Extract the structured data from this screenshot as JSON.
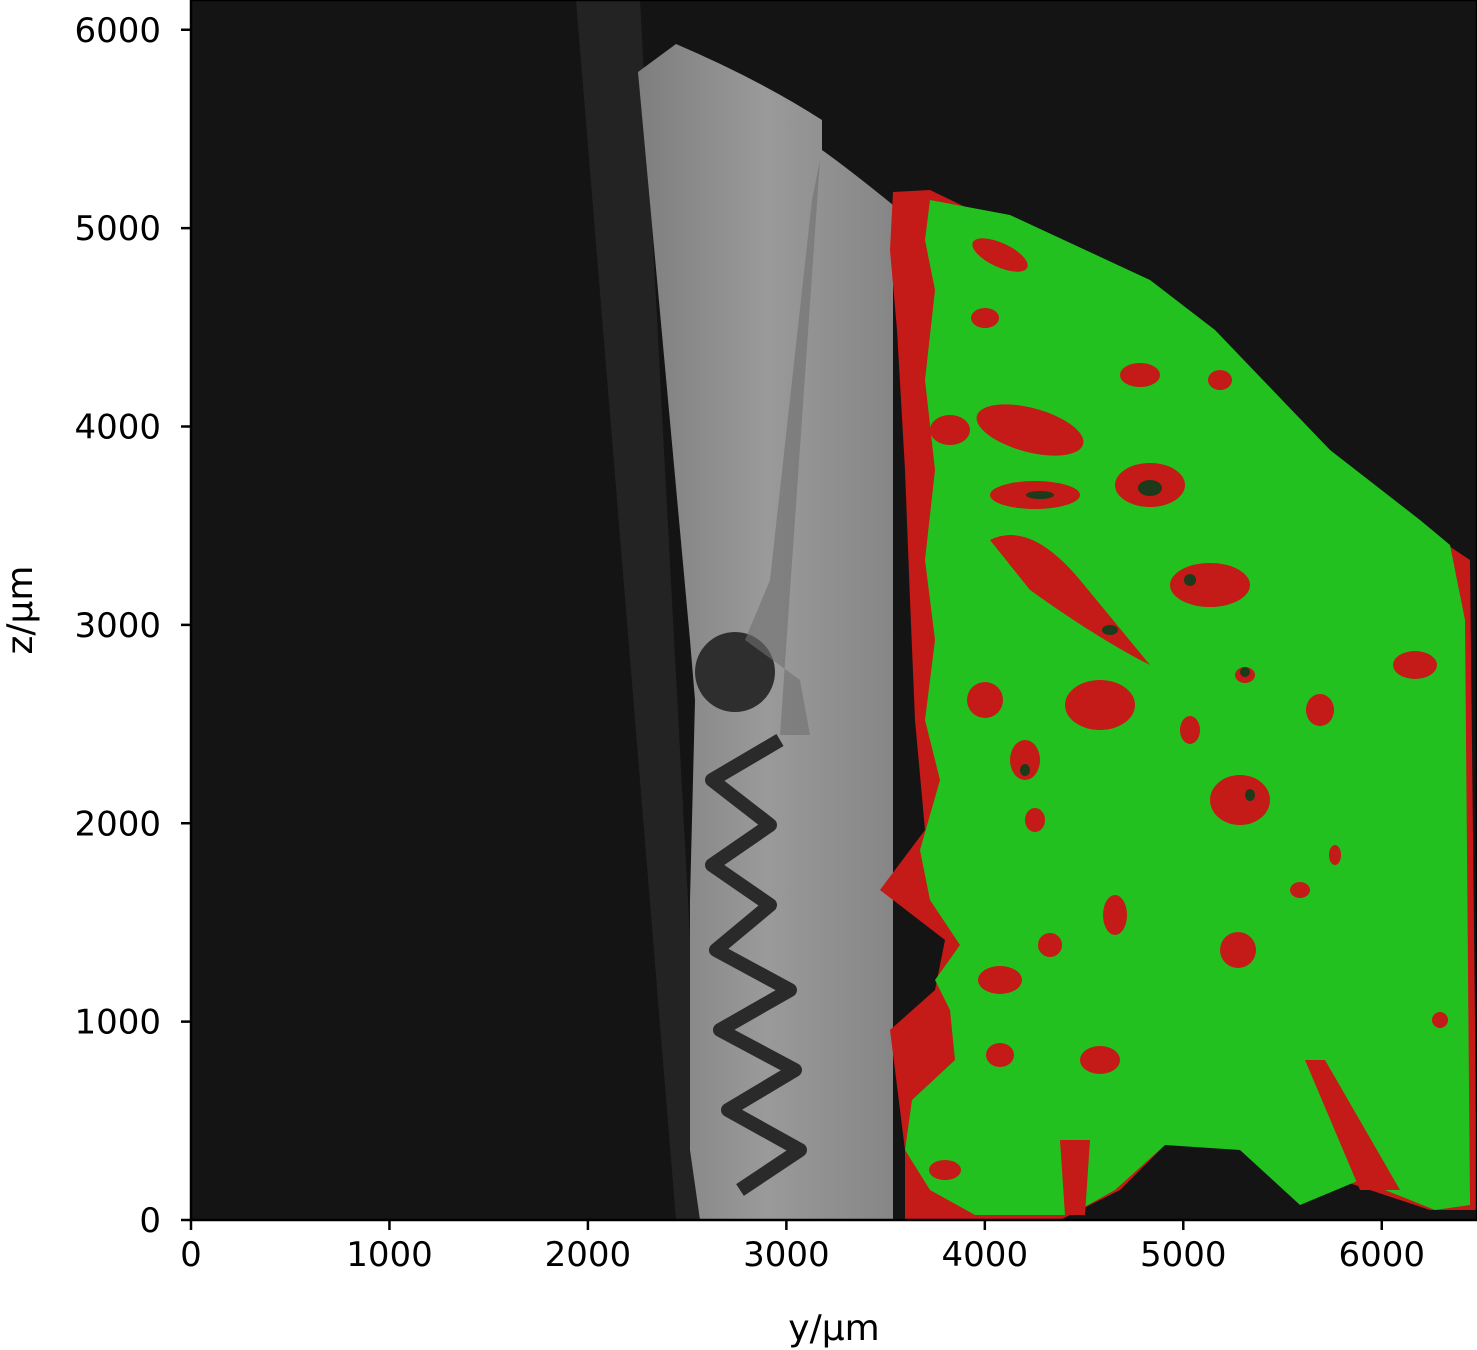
{
  "figure": {
    "xlabel": "y/µm",
    "ylabel": "z/µm",
    "x_ticks": [
      "0",
      "1000",
      "2000",
      "3000",
      "4000",
      "5000",
      "6000"
    ],
    "y_ticks": [
      "0",
      "1000",
      "2000",
      "3000",
      "4000",
      "5000",
      "6000"
    ],
    "xlim": [
      0,
      6480
    ],
    "ylim": [
      0,
      6150
    ]
  },
  "colors": {
    "background": "#141414",
    "implant": "#8a8a8a",
    "bone": "#22c11f",
    "soft_tissue": "#c41a18"
  }
}
